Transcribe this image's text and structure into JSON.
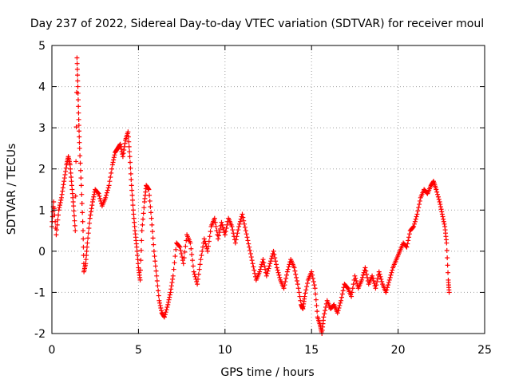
{
  "chart_data": {
    "type": "scatter",
    "title": "Day 237 of 2022, Sidereal Day-to-day VTEC variation (SDTVAR) for receiver moul",
    "xlabel": "GPS time / hours",
    "ylabel": "SDTVAR / TECUs",
    "xlim": [
      0,
      25
    ],
    "ylim": [
      -2,
      5
    ],
    "xticks": [
      "0",
      "5",
      "10",
      "15",
      "20",
      "25"
    ],
    "yticks": [
      "-2",
      "-1",
      "0",
      "1",
      "2",
      "3",
      "4",
      "5"
    ],
    "grid": true,
    "marker": "plus",
    "color": "#ff0000",
    "series": [
      {
        "name": "SDTVAR",
        "points": [
          [
            0.0,
            0.6
          ],
          [
            0.1,
            1.2
          ],
          [
            0.25,
            0.4
          ],
          [
            0.4,
            1.0
          ],
          [
            0.55,
            1.3
          ],
          [
            0.7,
            1.7
          ],
          [
            0.85,
            2.1
          ],
          [
            0.95,
            2.3
          ],
          [
            1.05,
            2.1
          ],
          [
            1.15,
            1.6
          ],
          [
            1.25,
            1.1
          ],
          [
            1.35,
            0.5
          ],
          [
            1.45,
            4.7
          ],
          [
            1.5,
            4.0
          ],
          [
            1.55,
            3.2
          ],
          [
            1.6,
            2.5
          ],
          [
            1.7,
            1.6
          ],
          [
            1.8,
            0.5
          ],
          [
            1.85,
            -0.5
          ],
          [
            1.95,
            -0.3
          ],
          [
            2.05,
            0.2
          ],
          [
            2.2,
            0.8
          ],
          [
            2.35,
            1.2
          ],
          [
            2.5,
            1.5
          ],
          [
            2.7,
            1.4
          ],
          [
            2.9,
            1.1
          ],
          [
            3.1,
            1.3
          ],
          [
            3.3,
            1.6
          ],
          [
            3.5,
            2.1
          ],
          [
            3.65,
            2.4
          ],
          [
            3.8,
            2.5
          ],
          [
            3.95,
            2.6
          ],
          [
            4.1,
            2.3
          ],
          [
            4.25,
            2.7
          ],
          [
            4.4,
            2.9
          ],
          [
            4.5,
            2.3
          ],
          [
            4.6,
            1.6
          ],
          [
            4.7,
            1.0
          ],
          [
            4.8,
            0.5
          ],
          [
            4.9,
            0.1
          ],
          [
            5.0,
            -0.4
          ],
          [
            5.1,
            -0.7
          ],
          [
            5.2,
            0.5
          ],
          [
            5.35,
            1.2
          ],
          [
            5.45,
            1.6
          ],
          [
            5.6,
            1.5
          ],
          [
            5.75,
            0.8
          ],
          [
            5.9,
            0.0
          ],
          [
            6.05,
            -0.6
          ],
          [
            6.2,
            -1.2
          ],
          [
            6.35,
            -1.5
          ],
          [
            6.5,
            -1.6
          ],
          [
            6.7,
            -1.3
          ],
          [
            6.85,
            -1.0
          ],
          [
            7.0,
            -0.6
          ],
          [
            7.2,
            0.2
          ],
          [
            7.4,
            0.1
          ],
          [
            7.6,
            -0.3
          ],
          [
            7.8,
            0.4
          ],
          [
            8.0,
            0.2
          ],
          [
            8.2,
            -0.5
          ],
          [
            8.4,
            -0.8
          ],
          [
            8.6,
            -0.2
          ],
          [
            8.8,
            0.3
          ],
          [
            9.0,
            0.0
          ],
          [
            9.2,
            0.6
          ],
          [
            9.4,
            0.8
          ],
          [
            9.6,
            0.3
          ],
          [
            9.8,
            0.7
          ],
          [
            10.0,
            0.4
          ],
          [
            10.2,
            0.8
          ],
          [
            10.4,
            0.6
          ],
          [
            10.6,
            0.2
          ],
          [
            10.8,
            0.6
          ],
          [
            11.0,
            0.9
          ],
          [
            11.2,
            0.5
          ],
          [
            11.4,
            0.1
          ],
          [
            11.6,
            -0.3
          ],
          [
            11.8,
            -0.7
          ],
          [
            12.0,
            -0.5
          ],
          [
            12.2,
            -0.2
          ],
          [
            12.4,
            -0.6
          ],
          [
            12.6,
            -0.3
          ],
          [
            12.8,
            0.0
          ],
          [
            13.0,
            -0.4
          ],
          [
            13.2,
            -0.7
          ],
          [
            13.4,
            -0.9
          ],
          [
            13.6,
            -0.5
          ],
          [
            13.8,
            -0.2
          ],
          [
            14.0,
            -0.4
          ],
          [
            14.2,
            -0.8
          ],
          [
            14.4,
            -1.3
          ],
          [
            14.5,
            -1.4
          ],
          [
            14.6,
            -1.1
          ],
          [
            14.8,
            -0.7
          ],
          [
            15.0,
            -0.5
          ],
          [
            15.2,
            -0.9
          ],
          [
            15.35,
            -1.6
          ],
          [
            15.5,
            -1.8
          ],
          [
            15.6,
            -2.0
          ],
          [
            15.7,
            -1.6
          ],
          [
            15.9,
            -1.2
          ],
          [
            16.1,
            -1.4
          ],
          [
            16.3,
            -1.3
          ],
          [
            16.5,
            -1.5
          ],
          [
            16.7,
            -1.2
          ],
          [
            16.9,
            -0.8
          ],
          [
            17.1,
            -0.9
          ],
          [
            17.3,
            -1.1
          ],
          [
            17.5,
            -0.6
          ],
          [
            17.7,
            -0.9
          ],
          [
            17.9,
            -0.7
          ],
          [
            18.1,
            -0.4
          ],
          [
            18.3,
            -0.8
          ],
          [
            18.5,
            -0.6
          ],
          [
            18.7,
            -0.9
          ],
          [
            18.9,
            -0.5
          ],
          [
            19.1,
            -0.8
          ],
          [
            19.3,
            -1.0
          ],
          [
            19.5,
            -0.7
          ],
          [
            19.7,
            -0.4
          ],
          [
            19.9,
            -0.2
          ],
          [
            20.1,
            0.0
          ],
          [
            20.3,
            0.2
          ],
          [
            20.5,
            0.1
          ],
          [
            20.7,
            0.5
          ],
          [
            20.9,
            0.6
          ],
          [
            21.1,
            0.9
          ],
          [
            21.3,
            1.3
          ],
          [
            21.5,
            1.5
          ],
          [
            21.7,
            1.4
          ],
          [
            21.9,
            1.6
          ],
          [
            22.05,
            1.7
          ],
          [
            22.2,
            1.5
          ],
          [
            22.4,
            1.2
          ],
          [
            22.55,
            0.9
          ],
          [
            22.7,
            0.6
          ],
          [
            22.8,
            0.2
          ],
          [
            22.9,
            -0.7
          ],
          [
            22.95,
            -1.0
          ]
        ]
      }
    ]
  }
}
